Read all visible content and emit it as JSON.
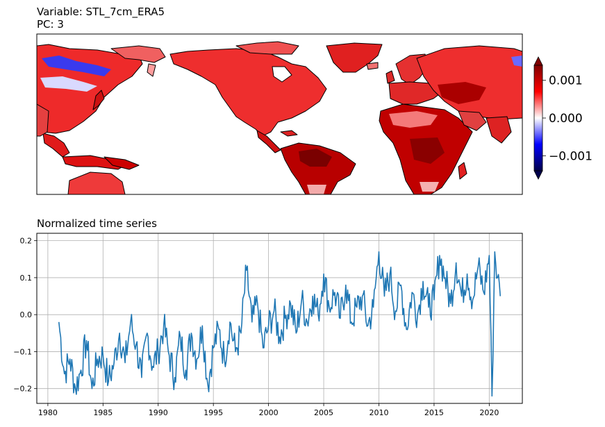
{
  "map_panel": {
    "title_line1": "Variable: STL_7cm_ERA5",
    "title_line2": "PC: 3",
    "colormap": "seismic",
    "colorbar": {
      "ticks": [
        {
          "value": 0.001,
          "label": "0.001"
        },
        {
          "value": 0.0,
          "label": "0.000"
        },
        {
          "value": -0.001,
          "label": "−0.001"
        }
      ],
      "vmin": -0.0014,
      "vmax": 0.0014,
      "extend": "both"
    }
  },
  "chart_data": {
    "type": "line",
    "title": "Normalized time series",
    "xlabel": "",
    "ylabel": "",
    "xlim": [
      1979,
      2023
    ],
    "ylim": [
      -0.24,
      0.22
    ],
    "grid": true,
    "color": "#1f77b4",
    "x_ticks": [
      1980,
      1985,
      1990,
      1995,
      2000,
      2005,
      2010,
      2015,
      2020
    ],
    "y_ticks": [
      -0.2,
      -0.1,
      0.0,
      0.1,
      0.2
    ],
    "y_tick_labels": [
      "−0.2",
      "−0.1",
      "0.0",
      "0.1",
      "0.2"
    ],
    "x": [
      1981.0,
      1981.5,
      1982.0,
      1982.5,
      1983.0,
      1983.5,
      1984.0,
      1984.5,
      1985.0,
      1985.5,
      1986.0,
      1986.5,
      1987.0,
      1987.5,
      1988.0,
      1988.5,
      1989.0,
      1989.5,
      1990.0,
      1990.5,
      1991.0,
      1991.5,
      1992.0,
      1992.5,
      1993.0,
      1993.5,
      1994.0,
      1994.5,
      1995.0,
      1995.5,
      1996.0,
      1996.5,
      1997.0,
      1997.5,
      1998.0,
      1998.5,
      1999.0,
      1999.5,
      2000.0,
      2000.5,
      2001.0,
      2001.5,
      2002.0,
      2002.5,
      2003.0,
      2003.5,
      2004.0,
      2004.5,
      2005.0,
      2005.5,
      2006.0,
      2006.5,
      2007.0,
      2007.5,
      2008.0,
      2008.5,
      2009.0,
      2009.5,
      2010.0,
      2010.5,
      2011.0,
      2011.5,
      2012.0,
      2012.5,
      2013.0,
      2013.5,
      2014.0,
      2014.5,
      2015.0,
      2015.5,
      2016.0,
      2016.5,
      2017.0,
      2017.5,
      2018.0,
      2018.5,
      2019.0,
      2019.5,
      2020.0,
      2020.25,
      2020.5,
      2020.75,
      2021.0
    ],
    "values": [
      -0.02,
      -0.16,
      -0.12,
      -0.2,
      -0.15,
      -0.07,
      -0.2,
      -0.12,
      -0.11,
      -0.18,
      -0.13,
      -0.05,
      -0.13,
      -0.02,
      -0.08,
      -0.17,
      -0.05,
      -0.14,
      -0.1,
      -0.03,
      -0.11,
      -0.17,
      -0.06,
      -0.15,
      -0.05,
      -0.12,
      -0.03,
      -0.19,
      -0.09,
      -0.04,
      -0.12,
      -0.02,
      -0.1,
      -0.05,
      0.12,
      -0.02,
      0.03,
      -0.09,
      -0.03,
      0.01,
      -0.06,
      -0.01,
      0.03,
      -0.05,
      0.04,
      -0.02,
      0.05,
      0.0,
      0.11,
      0.02,
      0.06,
      -0.01,
      0.08,
      -0.02,
      0.02,
      0.05,
      -0.03,
      0.02,
      0.17,
      0.05,
      0.11,
      0.01,
      0.08,
      -0.04,
      0.06,
      0.0,
      0.09,
      0.02,
      0.04,
      0.16,
      0.1,
      0.03,
      0.14,
      0.05,
      0.11,
      0.04,
      0.13,
      0.06,
      0.16,
      -0.22,
      0.17,
      0.1,
      0.05
    ]
  }
}
